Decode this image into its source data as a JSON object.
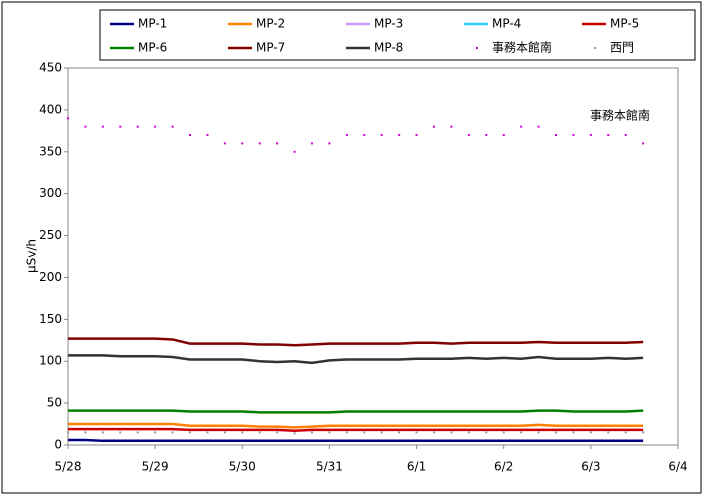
{
  "chart_data": {
    "type": "line",
    "y_label": "μSv/h",
    "annotation": "事務本館南",
    "x": [
      0,
      0.2,
      0.4,
      0.6,
      0.8,
      1,
      1.2,
      1.4,
      1.6,
      1.8,
      2,
      2.2,
      2.4,
      2.6,
      2.8,
      3,
      3.2,
      3.4,
      3.6,
      3.8,
      4,
      4.2,
      4.4,
      4.6,
      4.8,
      5,
      5.2,
      5.4,
      5.6,
      5.8,
      6,
      6.2,
      6.4,
      6.6
    ],
    "xlim": [
      0,
      7
    ],
    "xticks": [
      {
        "value": 0,
        "label": "5/28"
      },
      {
        "value": 1,
        "label": "5/29"
      },
      {
        "value": 2,
        "label": "5/30"
      },
      {
        "value": 3,
        "label": "5/31"
      },
      {
        "value": 4,
        "label": "6/1"
      },
      {
        "value": 5,
        "label": "6/2"
      },
      {
        "value": 6,
        "label": "6/3"
      },
      {
        "value": 7,
        "label": "6/4"
      }
    ],
    "ylim": [
      0,
      450
    ],
    "yticks": [
      0,
      50,
      100,
      150,
      200,
      250,
      300,
      350,
      400,
      450
    ],
    "grid": false,
    "series": [
      {
        "name": "MP-1",
        "color": "#000080",
        "style": "line",
        "values": [
          6,
          6,
          5,
          5,
          5,
          5,
          5,
          5,
          5,
          5,
          5,
          5,
          5,
          5,
          5,
          5,
          5,
          5,
          5,
          5,
          5,
          5,
          5,
          5,
          5,
          5,
          5,
          5,
          5,
          5,
          5,
          5,
          5,
          5
        ]
      },
      {
        "name": "MP-2",
        "color": "#ff8000",
        "style": "line",
        "values": [
          25,
          25,
          25,
          25,
          25,
          25,
          25,
          23,
          23,
          23,
          23,
          22,
          22,
          21,
          22,
          23,
          23,
          23,
          23,
          23,
          23,
          23,
          23,
          23,
          23,
          23,
          23,
          24,
          23,
          23,
          23,
          23,
          23,
          23
        ]
      },
      {
        "name": "MP-3",
        "color": "#cc99ff",
        "style": "line",
        "values": [
          null,
          null,
          null,
          null,
          null,
          null,
          null,
          null,
          null,
          null,
          null,
          null,
          null,
          null,
          null,
          null,
          null,
          null,
          null,
          null,
          null,
          null,
          null,
          null,
          null,
          null,
          null,
          null,
          null,
          null,
          null,
          null,
          null,
          null
        ]
      },
      {
        "name": "MP-4",
        "color": "#33ccff",
        "style": "line",
        "values": [
          null,
          null,
          null,
          null,
          null,
          null,
          null,
          null,
          null,
          null,
          null,
          null,
          null,
          null,
          null,
          null,
          null,
          null,
          null,
          null,
          null,
          null,
          null,
          null,
          null,
          null,
          null,
          null,
          null,
          null,
          null,
          null,
          null,
          null
        ]
      },
      {
        "name": "MP-5",
        "color": "#cc0000",
        "style": "line",
        "values": [
          19,
          19,
          19,
          19,
          19,
          19,
          19,
          18,
          18,
          18,
          18,
          18,
          18,
          17,
          18,
          18,
          18,
          18,
          18,
          18,
          18,
          18,
          18,
          18,
          18,
          18,
          18,
          18,
          18,
          18,
          18,
          18,
          18,
          18
        ]
      },
      {
        "name": "MP-6",
        "color": "#008000",
        "style": "line",
        "values": [
          41,
          41,
          41,
          41,
          41,
          41,
          41,
          40,
          40,
          40,
          40,
          39,
          39,
          39,
          39,
          39,
          40,
          40,
          40,
          40,
          40,
          40,
          40,
          40,
          40,
          40,
          40,
          41,
          41,
          40,
          40,
          40,
          40,
          41
        ]
      },
      {
        "name": "MP-7",
        "color": "#800000",
        "style": "line",
        "values": [
          127,
          127,
          127,
          127,
          127,
          127,
          126,
          121,
          121,
          121,
          121,
          120,
          120,
          119,
          120,
          121,
          121,
          121,
          121,
          121,
          122,
          122,
          121,
          122,
          122,
          122,
          122,
          123,
          122,
          122,
          122,
          122,
          122,
          123
        ]
      },
      {
        "name": "MP-8",
        "color": "#333333",
        "style": "line",
        "values": [
          107,
          107,
          107,
          106,
          106,
          106,
          105,
          102,
          102,
          102,
          102,
          100,
          99,
          100,
          98,
          101,
          102,
          102,
          102,
          102,
          103,
          103,
          103,
          104,
          103,
          104,
          103,
          105,
          103,
          103,
          103,
          104,
          103,
          104
        ]
      },
      {
        "name": "事務本館南",
        "color": "#cc00cc",
        "style": "dots",
        "values": [
          390,
          380,
          380,
          380,
          380,
          380,
          380,
          370,
          370,
          360,
          360,
          360,
          360,
          350,
          360,
          360,
          370,
          370,
          370,
          370,
          370,
          380,
          380,
          370,
          370,
          370,
          380,
          380,
          370,
          370,
          370,
          370,
          370,
          360
        ]
      },
      {
        "name": "西門",
        "color": "#999999",
        "style": "dots",
        "values": [
          15,
          15,
          15,
          15,
          15,
          15,
          15,
          15,
          15,
          15,
          15,
          15,
          15,
          14,
          15,
          15,
          15,
          15,
          15,
          15,
          15,
          15,
          15,
          15,
          15,
          15,
          15,
          15,
          15,
          15,
          15,
          15,
          15,
          15
        ]
      }
    ]
  }
}
